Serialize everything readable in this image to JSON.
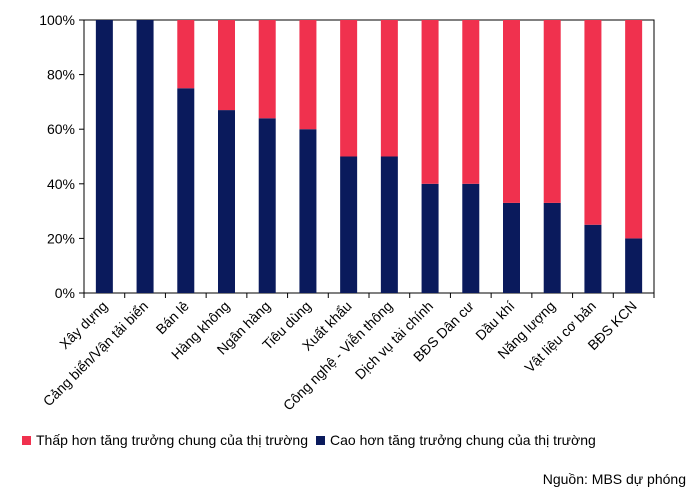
{
  "chart_data": {
    "type": "bar",
    "stacked": true,
    "categories": [
      "Xây dựng",
      "Cảng biển/Vận tải biển",
      "Bán lẻ",
      "Hàng không",
      "Ngân hàng",
      "Tiêu dùng",
      "Xuất khẩu",
      "Công nghệ - Viễn thông",
      "Dịch vụ tài chính",
      "BĐS Dân cư",
      "Dầu khí",
      "Năng lượng",
      "Vật liệu cơ bản",
      "BĐS KCN"
    ],
    "series": [
      {
        "name": "Cao hơn tăng trưởng chung của thị trường",
        "color": "#0a1a5c",
        "values": [
          100,
          100,
          75,
          67,
          64,
          60,
          50,
          50,
          40,
          40,
          33,
          33,
          25,
          20
        ]
      },
      {
        "name": "Thấp hơn tăng trưởng chung của thị trường",
        "color": "#f0314e",
        "values": [
          0,
          0,
          25,
          33,
          36,
          40,
          50,
          50,
          60,
          60,
          67,
          67,
          75,
          80
        ]
      }
    ],
    "ylim": [
      0,
      100
    ],
    "yticks": [
      0,
      20,
      40,
      60,
      80,
      100
    ],
    "ytick_labels": [
      "0%",
      "20%",
      "40%",
      "60%",
      "80%",
      "100%"
    ],
    "grid": false,
    "legend_position": "bottom"
  },
  "legend": {
    "items": [
      {
        "label": "Thấp hơn tăng trưởng chung của thị trường",
        "color": "#f0314e"
      },
      {
        "label": "Cao hơn tăng trưởng chung của thị trường",
        "color": "#0a1a5c"
      }
    ]
  },
  "source": "Nguồn: MBS dự phóng"
}
